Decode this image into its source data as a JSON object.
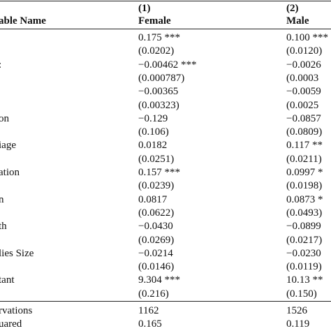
{
  "header": {
    "col1_num": "(1)",
    "col2_num": "(2)",
    "variable_header": "able Name",
    "col1_name": "Female",
    "col2_name": "Male"
  },
  "rows": [
    {
      "label": "",
      "female": "0.175 ***",
      "male": "0.100 ***"
    },
    {
      "label": "",
      "female": "(0.0202)",
      "male": "(0.0120)"
    },
    {
      "label": ":",
      "female": "−0.00462 ***",
      "male": "−0.0026"
    },
    {
      "label": "",
      "female": "(0.000787)",
      "male": "(0.0003"
    },
    {
      "label": "",
      "female": "−0.00365",
      "male": "−0.0059"
    },
    {
      "label": "",
      "female": "(0.00323)",
      "male": "(0.0025"
    },
    {
      "label": "on",
      "female": "−0.129",
      "male": "−0.0857"
    },
    {
      "label": "",
      "female": "(0.106)",
      "male": "(0.0809)"
    },
    {
      "label": "iage",
      "female": "0.0182",
      "male": "0.117 **"
    },
    {
      "label": "",
      "female": "(0.0251)",
      "male": "(0.0211)"
    },
    {
      "label": "ation",
      "female": "0.157 ***",
      "male": "0.0997 *"
    },
    {
      "label": "",
      "female": "(0.0239)",
      "male": "(0.0198)"
    },
    {
      "label": "n",
      "female": "0.0817",
      "male": "0.0873 *"
    },
    {
      "label": "",
      "female": "(0.0622)",
      "male": "(0.0493)"
    },
    {
      "label": "th",
      "female": "−0.0430",
      "male": "−0.0899"
    },
    {
      "label": "",
      "female": "(0.0269)",
      "male": "(0.0217)"
    },
    {
      "label": "lies Size",
      "female": "−0.0214",
      "male": "−0.0230"
    },
    {
      "label": "",
      "female": "(0.0146)",
      "male": "(0.0119)"
    },
    {
      "label": "tant",
      "female": "9.304 ***",
      "male": "10.13 **"
    },
    {
      "label": "",
      "female": "(0.216)",
      "male": "(0.150)"
    }
  ],
  "footer": [
    {
      "label": "rvations",
      "female": "1162",
      "male": "1526"
    },
    {
      "label": "uared",
      "female": "0.165",
      "male": "0.119"
    }
  ]
}
